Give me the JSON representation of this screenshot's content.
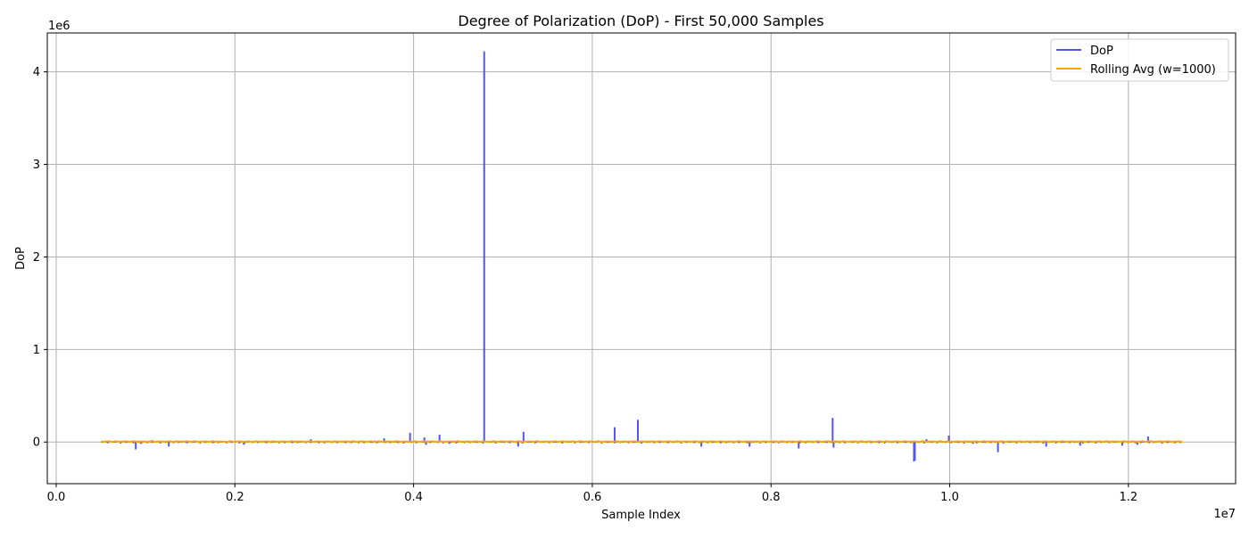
{
  "chart_data": {
    "type": "line",
    "title": "Degree of Polarization (DoP) - First 50,000 Samples",
    "xlabel": "Sample Index",
    "ylabel": "DoP",
    "x_offset_label": "1e7",
    "y_offset_label": "1e6",
    "xlim": [
      -0.01,
      1.32
    ],
    "ylim": [
      -0.45,
      4.42
    ],
    "x_ticks": [
      0.0,
      0.2,
      0.4,
      0.6,
      0.8,
      1.0,
      1.2
    ],
    "x_tick_labels": [
      "0.0",
      "0.2",
      "0.4",
      "0.6",
      "0.8",
      "1.0",
      "1.2"
    ],
    "y_ticks": [
      0,
      1,
      2,
      3,
      4
    ],
    "y_tick_labels": [
      "0",
      "1",
      "2",
      "3",
      "4"
    ],
    "grid": true,
    "legend_position": "top-right",
    "x_range": [
      0.05,
      1.26
    ],
    "series": [
      {
        "name": "DoP",
        "color": "#5555ee",
        "spikes": [
          [
            0.089,
            -0.08
          ],
          [
            0.095,
            -0.02
          ],
          [
            0.108,
            0.02
          ],
          [
            0.126,
            -0.05
          ],
          [
            0.21,
            -0.03
          ],
          [
            0.285,
            0.03
          ],
          [
            0.35,
            0.01
          ],
          [
            0.367,
            0.04
          ],
          [
            0.396,
            0.1
          ],
          [
            0.412,
            0.05
          ],
          [
            0.414,
            -0.03
          ],
          [
            0.429,
            0.08
          ],
          [
            0.44,
            -0.02
          ],
          [
            0.479,
            4.22
          ],
          [
            0.517,
            -0.05
          ],
          [
            0.523,
            0.11
          ],
          [
            0.625,
            0.16
          ],
          [
            0.651,
            0.24
          ],
          [
            0.722,
            -0.05
          ],
          [
            0.776,
            -0.05
          ],
          [
            0.831,
            -0.07
          ],
          [
            0.869,
            0.26
          ],
          [
            0.87,
            -0.06
          ],
          [
            0.96,
            -0.21
          ],
          [
            0.961,
            -0.2
          ],
          [
            0.974,
            0.03
          ],
          [
            0.999,
            0.07
          ],
          [
            1.026,
            -0.02
          ],
          [
            1.054,
            -0.11
          ],
          [
            1.108,
            -0.05
          ],
          [
            1.146,
            -0.04
          ],
          [
            1.193,
            -0.04
          ],
          [
            1.21,
            -0.03
          ],
          [
            1.222,
            0.06
          ]
        ]
      },
      {
        "name": "Rolling Avg (w=1000)",
        "color": "#ffa500",
        "level": 0.005
      }
    ]
  }
}
